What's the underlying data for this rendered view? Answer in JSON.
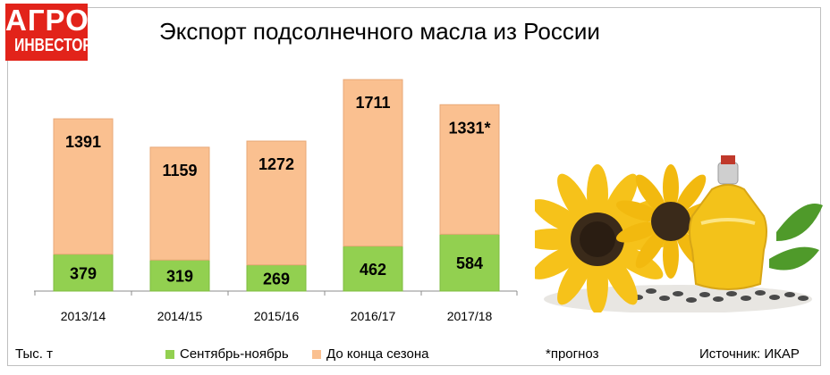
{
  "logo": {
    "line1": "АГРО",
    "line2": "ИНВЕСТОР"
  },
  "header": {
    "title": "Экспорт подсолнечного масла из России"
  },
  "footer": {
    "unit": "Тыс. т",
    "note": "*прогноз",
    "source": "Источник: ИКАР"
  },
  "colors": {
    "bottom": "#92d050",
    "top": "#fac090",
    "logo": "#e2231a"
  },
  "chart_data": {
    "type": "bar",
    "stacked": true,
    "categories": [
      "2013/14",
      "2014/15",
      "2015/16",
      "2016/17",
      "2017/18"
    ],
    "series": [
      {
        "name": "Сентябрь-ноябрь",
        "values": [
          379,
          319,
          269,
          462,
          584
        ]
      },
      {
        "name": "До конца сезона",
        "values": [
          1391,
          1159,
          1272,
          1711,
          1331
        ]
      }
    ],
    "data_labels": [
      [
        "379",
        "319",
        "269",
        "462",
        "584"
      ],
      [
        "1391",
        "1159",
        "1272",
        "1711",
        "1331*"
      ]
    ],
    "ylim": [
      0,
      2200
    ],
    "grid": false,
    "legend_position": "bottom"
  }
}
